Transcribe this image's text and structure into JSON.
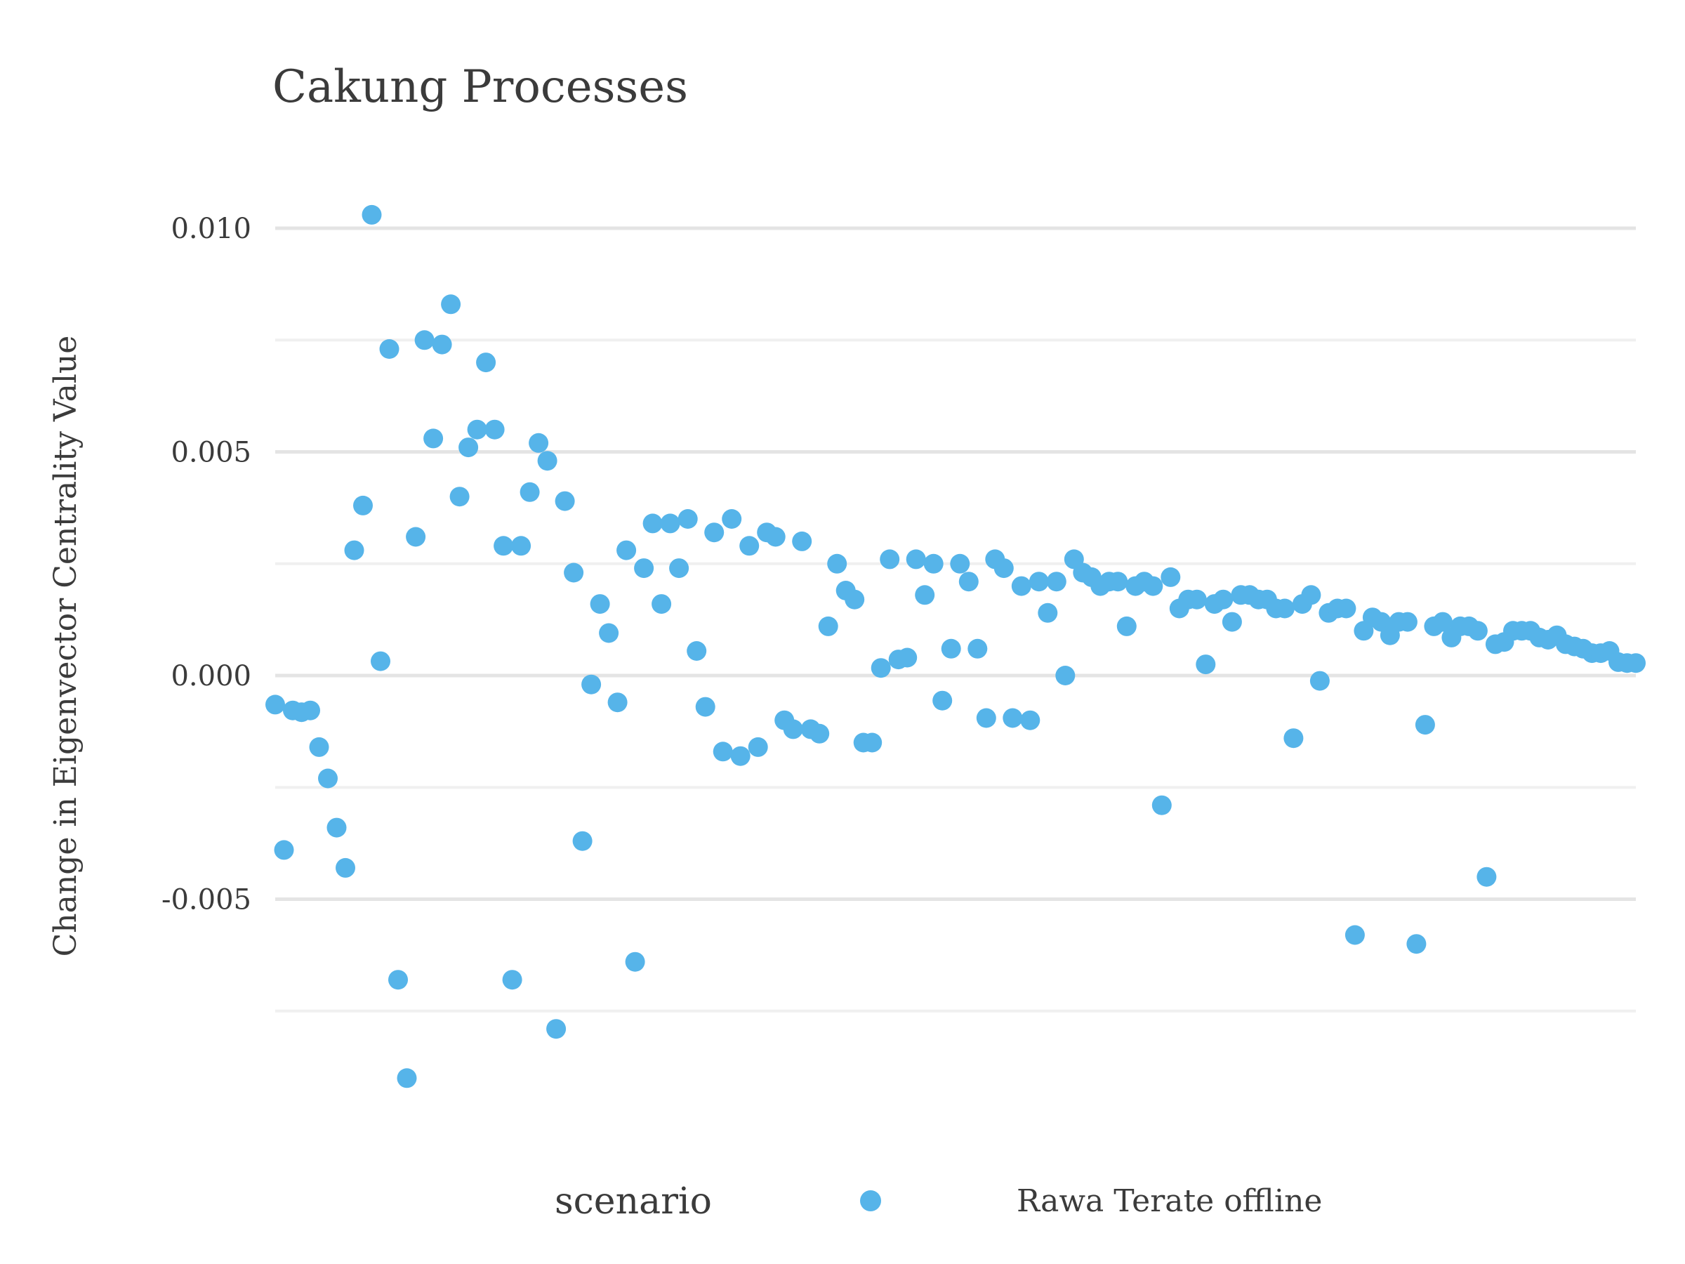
{
  "chart_data": {
    "type": "scatter",
    "title": "Cakung Processes",
    "xlabel": "",
    "ylabel": "Change in Eigenvector Centrality Value",
    "ylim": [
      -0.0107,
      0.0113
    ],
    "xlim": [
      1,
      156
    ],
    "y_ticks": [
      -0.005,
      0.0,
      0.005,
      0.01
    ],
    "y_tick_labels": [
      "-0.005",
      "0.000",
      "0.005",
      "0.010"
    ],
    "y_minor_ticks": [
      -0.0075,
      -0.0025,
      0.0025,
      0.0075
    ],
    "grid": true,
    "legend": {
      "title": "scenario",
      "position": "bottom"
    },
    "series": [
      {
        "name": "Rawa Terate offline",
        "color": "#56b4e9",
        "x": [
          1,
          2,
          3,
          4,
          5,
          6,
          7,
          8,
          9,
          10,
          11,
          12,
          13,
          14,
          15,
          16,
          17,
          18,
          19,
          20,
          21,
          22,
          23,
          24,
          25,
          26,
          27,
          28,
          29,
          30,
          31,
          32,
          33,
          34,
          35,
          36,
          37,
          38,
          39,
          40,
          41,
          42,
          43,
          44,
          45,
          46,
          47,
          48,
          49,
          50,
          51,
          52,
          53,
          54,
          55,
          56,
          57,
          58,
          59,
          60,
          61,
          62,
          63,
          64,
          65,
          66,
          67,
          68,
          69,
          70,
          71,
          72,
          73,
          74,
          75,
          76,
          77,
          78,
          79,
          80,
          81,
          82,
          83,
          84,
          85,
          86,
          87,
          88,
          89,
          90,
          91,
          92,
          93,
          94,
          95,
          96,
          97,
          98,
          99,
          100,
          101,
          102,
          103,
          104,
          105,
          106,
          107,
          108,
          109,
          110,
          111,
          112,
          113,
          114,
          115,
          116,
          117,
          118,
          119,
          120,
          121,
          122,
          123,
          124,
          125,
          126,
          127,
          128,
          129,
          130,
          131,
          132,
          133,
          134,
          135,
          136,
          137,
          138,
          139,
          140,
          141,
          142,
          143,
          144,
          145,
          146,
          147,
          148,
          149,
          150,
          151,
          152,
          153,
          154,
          155,
          156
        ],
        "y": [
          -0.00065,
          -0.0039,
          -0.00078,
          -0.00082,
          -0.00078,
          -0.0016,
          -0.0023,
          -0.0034,
          -0.0043,
          0.0028,
          0.0038,
          0.0103,
          0.00032,
          0.0073,
          -0.0068,
          -0.009,
          0.0031,
          0.0075,
          0.0053,
          0.0074,
          0.0083,
          0.004,
          0.0051,
          0.0055,
          0.007,
          0.0055,
          0.0029,
          -0.0068,
          0.0029,
          0.0041,
          0.0052,
          0.0048,
          -0.0079,
          0.0039,
          0.0023,
          -0.0037,
          -0.0002,
          0.0016,
          0.00095,
          -0.0006,
          0.0028,
          -0.0064,
          0.0024,
          0.0034,
          0.0016,
          0.0034,
          0.0024,
          0.0035,
          0.00055,
          -0.0007,
          0.0032,
          -0.0017,
          0.0035,
          -0.0018,
          0.0029,
          -0.0016,
          0.0032,
          0.0031,
          -0.001,
          -0.0012,
          0.003,
          -0.0012,
          -0.0013,
          0.0011,
          0.0025,
          0.0019,
          0.0017,
          -0.0015,
          -0.0015,
          0.00017,
          0.0026,
          0.00036,
          0.0004,
          0.0026,
          0.0018,
          0.0025,
          -0.00056,
          0.0006,
          0.0025,
          0.0021,
          0.0006,
          -0.00095,
          0.0026,
          0.0024,
          -0.00095,
          0.002,
          -0.001,
          0.0021,
          0.0014,
          0.0021,
          0.0,
          0.0026,
          0.0023,
          0.0022,
          0.002,
          0.0021,
          0.0021,
          0.0011,
          0.002,
          0.0021,
          0.002,
          -0.0029,
          0.0022,
          0.0015,
          0.0017,
          0.0017,
          0.00025,
          0.0016,
          0.0017,
          0.0012,
          0.0018,
          0.0018,
          0.0017,
          0.0017,
          0.0015,
          0.0015,
          -0.0014,
          0.0016,
          0.0018,
          -0.00012,
          0.0014,
          0.0015,
          0.0015,
          -0.0058,
          0.001,
          0.0013,
          0.0012,
          0.0009,
          0.0012,
          0.0012,
          -0.006,
          -0.0011,
          0.0011,
          0.0012,
          0.00085,
          0.0011,
          0.0011,
          0.001,
          -0.0045,
          0.0007,
          0.00075,
          0.001,
          0.001,
          0.001,
          0.00085,
          0.0008,
          0.0009,
          0.0007,
          0.00065,
          0.0006,
          0.0005,
          0.0005,
          0.00055,
          0.0003,
          0.00028,
          0.00028
        ]
      }
    ]
  }
}
